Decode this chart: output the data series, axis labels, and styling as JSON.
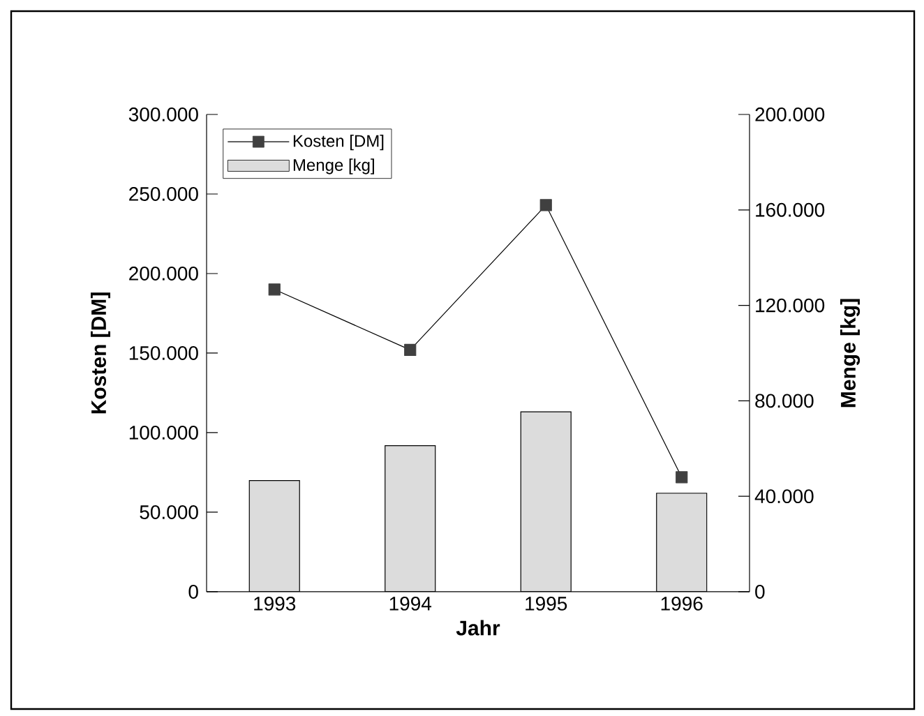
{
  "chart_data": {
    "type": "bar",
    "xlabel": "Jahr",
    "ylabel": "Kosten [DM]",
    "y2label": "Menge [kg]",
    "categories": [
      "1993",
      "1994",
      "1995",
      "1996"
    ],
    "series": [
      {
        "name": "Kosten [DM]",
        "type": "line",
        "axis": "y",
        "color": "#404040",
        "values": [
          190000,
          152000,
          243000,
          72000
        ]
      },
      {
        "name": "Menge [kg]",
        "axis": "y2",
        "color": "#dcdcdc",
        "values": [
          46600,
          61200,
          75400,
          41300
        ]
      }
    ],
    "ylim": [
      0,
      300000
    ],
    "yticks": [
      {
        "value": 0,
        "label": "0"
      },
      {
        "value": 50000,
        "label": "50.000"
      },
      {
        "value": 100000,
        "label": "100.000"
      },
      {
        "value": 150000,
        "label": "150.000"
      },
      {
        "value": 200000,
        "label": "200.000"
      },
      {
        "value": 250000,
        "label": "250.000"
      },
      {
        "value": 300000,
        "label": "300.000"
      }
    ],
    "y2lim": [
      0,
      200000
    ],
    "y2ticks": [
      {
        "value": 0,
        "label": "0"
      },
      {
        "value": 40000,
        "label": "40.000"
      },
      {
        "value": 80000,
        "label": "80.000"
      },
      {
        "value": 120000,
        "label": "120.000"
      },
      {
        "value": 160000,
        "label": "160.000"
      },
      {
        "value": 200000,
        "label": "200.000"
      }
    ],
    "legend": "top left",
    "marker": "square",
    "line_style": "solid"
  }
}
